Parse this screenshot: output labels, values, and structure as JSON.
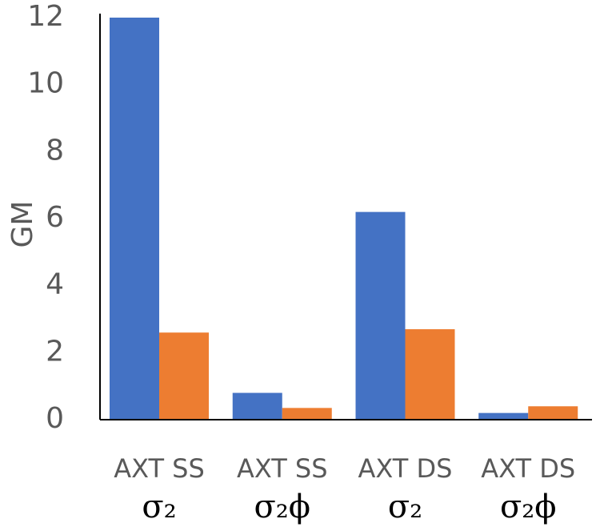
{
  "chart_data": {
    "type": "bar",
    "ylabel": "GM",
    "xlabel": "",
    "ylim": [
      0,
      12
    ],
    "yticks": [
      "0",
      "2",
      "4",
      "6",
      "8",
      "10",
      "12"
    ],
    "categories": [
      {
        "line1": "AXT SS",
        "line2": "σ₂"
      },
      {
        "line1": "AXT SS",
        "line2": "σ₂ϕ"
      },
      {
        "line1": "AXT DS",
        "line2": "σ₂"
      },
      {
        "line1": "AXT DS",
        "line2": "σ₂ϕ"
      }
    ],
    "series": [
      {
        "values": [
          12.0,
          0.8,
          6.2,
          0.2
        ],
        "color": "#4472C4"
      },
      {
        "values": [
          2.6,
          0.35,
          2.7,
          0.4
        ],
        "color": "#ED7D31"
      }
    ],
    "grid": false,
    "legend": "none"
  }
}
